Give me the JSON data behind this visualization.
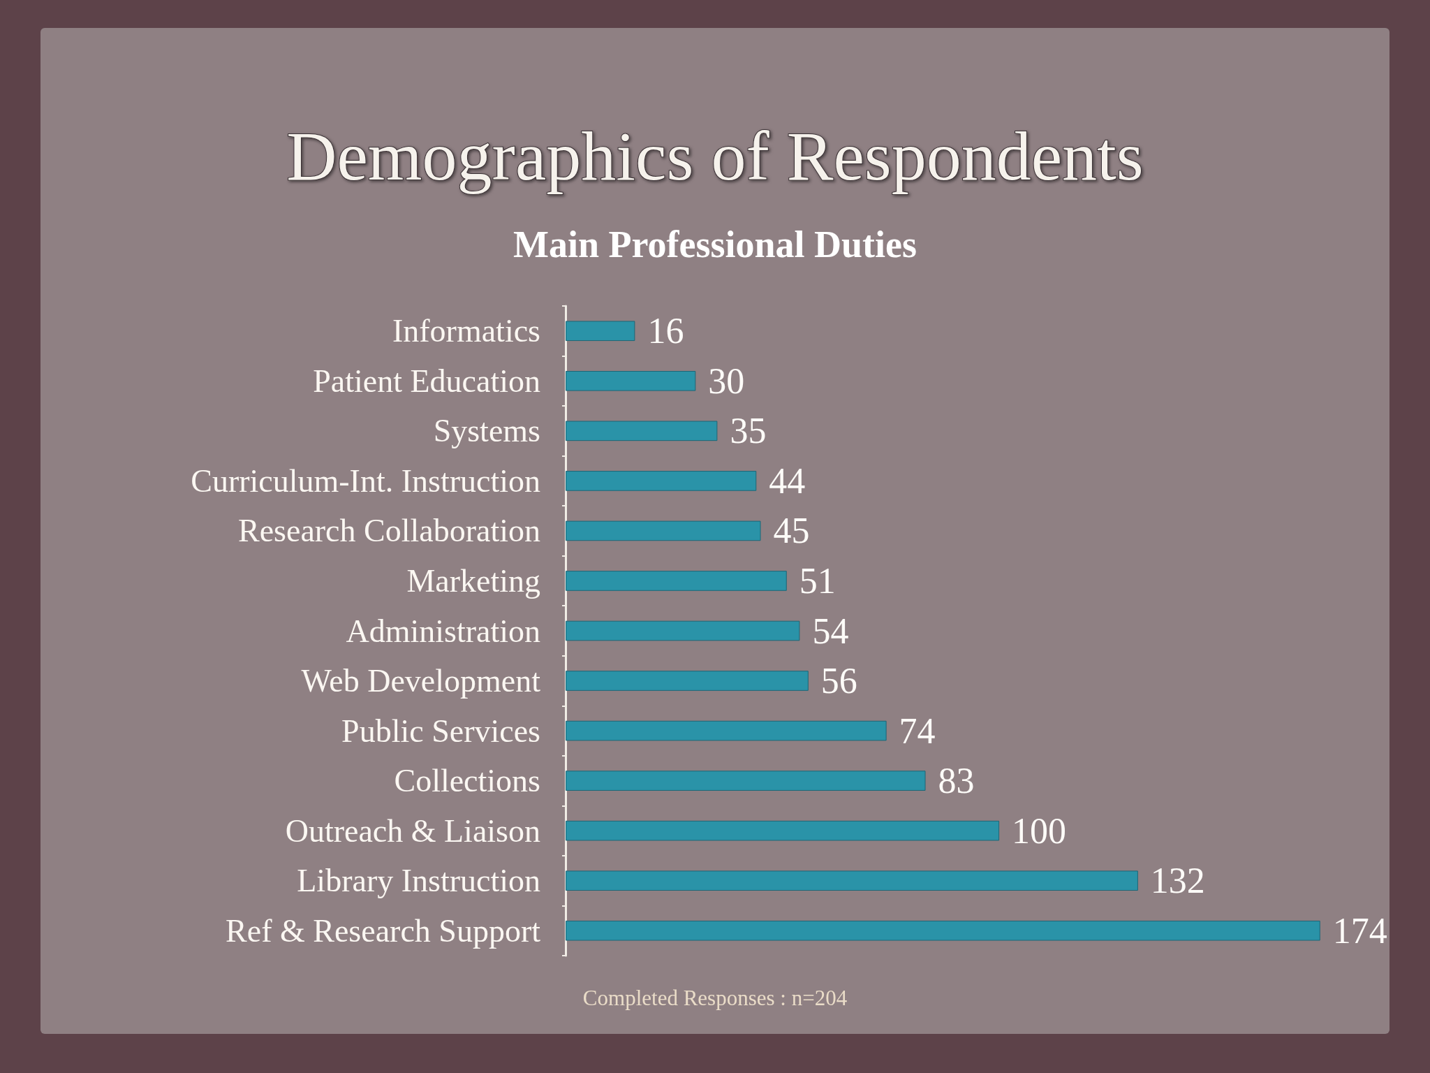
{
  "chart_data": {
    "type": "bar",
    "orientation": "horizontal",
    "title": "Demographics of Respondents",
    "subtitle": "Main Professional Duties",
    "categories": [
      "Informatics",
      "Patient Education",
      "Systems",
      "Curriculum-Int. Instruction",
      "Research Collaboration",
      "Marketing",
      "Administration",
      "Web Development",
      "Public Services",
      "Collections",
      "Outreach & Liaison",
      "Library Instruction",
      "Ref & Research Support"
    ],
    "values": [
      16,
      30,
      35,
      44,
      45,
      51,
      54,
      56,
      74,
      83,
      100,
      132,
      174
    ],
    "color": "#2a93a8",
    "data_labels": true,
    "annotations": [
      "Completed Responses : n=204"
    ]
  }
}
